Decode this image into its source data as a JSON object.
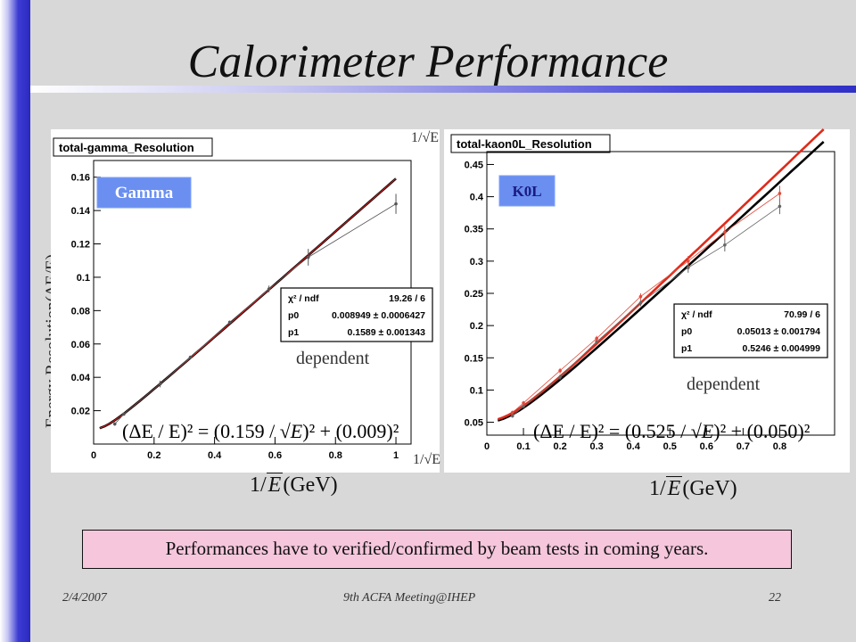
{
  "slide": {
    "title": "Calorimeter Performance",
    "y_axis_title": "Energy Resolution(ΔE/E)",
    "note": "Performances have to verified/confirmed by beam tests in coming years.",
    "footer_left": "2/4/2007",
    "footer_center": "9th ACFA Meeting@IHEP",
    "footer_right": "22",
    "colors": {
      "accent_bar": "#3c3cd2",
      "note_fill": "#f5c6dc",
      "tag_fill": "#6a8ff0"
    }
  },
  "chart_data": [
    {
      "type": "scatter",
      "title": "total-gamma_Resolution",
      "tag": "Gamma",
      "xlabel_top": "1/√E",
      "xlabel_bottom": "1/√E",
      "xlabel_slide": {
        "pre": "1/",
        "e": "E",
        "post": "(GeV)"
      },
      "xlim": [
        0,
        1.05
      ],
      "ylim": [
        0,
        0.17
      ],
      "xticks": [
        0,
        0.2,
        0.4,
        0.6,
        0.8,
        1
      ],
      "xtick_labels": [
        "0",
        "0.2",
        "0.4",
        "0.6",
        "0.8",
        "1"
      ],
      "yticks": [
        0.02,
        0.04,
        0.06,
        0.08,
        0.1,
        0.12,
        0.14,
        0.16
      ],
      "ytick_labels": [
        "0.02",
        "0.04",
        "0.06",
        "0.08",
        "0.1",
        "0.12",
        "0.14",
        "0.16"
      ],
      "fit": {
        "p1": 0.1589,
        "p0": 0.008949,
        "x_range": [
          0.02,
          1.0
        ]
      },
      "series_points": {
        "x": [
          0.07,
          0.1,
          0.22,
          0.32,
          0.45,
          0.58,
          0.71,
          1.0
        ],
        "y": [
          0.012,
          0.018,
          0.036,
          0.052,
          0.073,
          0.093,
          0.112,
          0.144
        ],
        "err": [
          0.001,
          0.001,
          0.002,
          0.001,
          0.001,
          0.002,
          0.005,
          0.006
        ]
      },
      "stats": [
        {
          "label": "χ² / ndf",
          "value": "19.26 / 6"
        },
        {
          "label": "p0",
          "value": "0.008949 ± 0.0006427"
        },
        {
          "label": "p1",
          "value": "0.1589 ± 0.001343"
        }
      ],
      "annotation": "dependent",
      "formula": {
        "lhs": "(ΔE / E)² = (0.159 / ",
        "e": "E",
        "mid": ")² + (0.009)²"
      }
    },
    {
      "type": "scatter",
      "title": "total-kaon0L_Resolution",
      "tag": "K0L",
      "xlabel_slide": {
        "pre": "1/",
        "e": "E",
        "post": "(GeV)"
      },
      "xlim": [
        0,
        0.95
      ],
      "ylim": [
        0.03,
        0.47
      ],
      "xticks": [
        0,
        0.1,
        0.2,
        0.3,
        0.4,
        0.5,
        0.6,
        0.7,
        0.8
      ],
      "xtick_labels": [
        "0",
        "0.1",
        "0.2",
        "0.3",
        "0.4",
        "0.5",
        "0.6",
        "0.7",
        "0.8"
      ],
      "yticks": [
        0.05,
        0.1,
        0.15,
        0.2,
        0.25,
        0.3,
        0.35,
        0.4,
        0.45
      ],
      "ytick_labels": [
        "0.05",
        "0.1",
        "0.15",
        "0.2",
        "0.25",
        "0.3",
        "0.35",
        "0.4",
        "0.45"
      ],
      "fit": {
        "p1": 0.5246,
        "p0": 0.05013,
        "x_range": [
          0.03,
          0.92
        ]
      },
      "series_points": {
        "x": [
          0.07,
          0.1,
          0.2,
          0.3,
          0.42,
          0.55,
          0.65,
          0.8
        ],
        "y": [
          0.06,
          0.075,
          0.12,
          0.175,
          0.235,
          0.29,
          0.325,
          0.385
        ],
        "err": [
          0.003,
          0.003,
          0.004,
          0.004,
          0.005,
          0.008,
          0.01,
          0.012
        ]
      },
      "series_points_red": {
        "x": [
          0.07,
          0.1,
          0.2,
          0.3,
          0.42,
          0.55,
          0.65,
          0.8
        ],
        "y": [
          0.065,
          0.08,
          0.13,
          0.18,
          0.245,
          0.3,
          0.345,
          0.405
        ],
        "err": [
          0.003,
          0.003,
          0.004,
          0.004,
          0.005,
          0.008,
          0.01,
          0.012
        ]
      },
      "stats": [
        {
          "label": "χ² / ndf",
          "value": "70.99 / 6"
        },
        {
          "label": "p0",
          "value": "0.05013 ± 0.001794"
        },
        {
          "label": "p1",
          "value": "0.5246 ± 0.004999"
        }
      ],
      "annotation": "dependent",
      "formula": {
        "lhs": "(ΔE / E)² = (0.525 / ",
        "e": "E",
        "mid": ")² + (0.050)²"
      }
    }
  ]
}
